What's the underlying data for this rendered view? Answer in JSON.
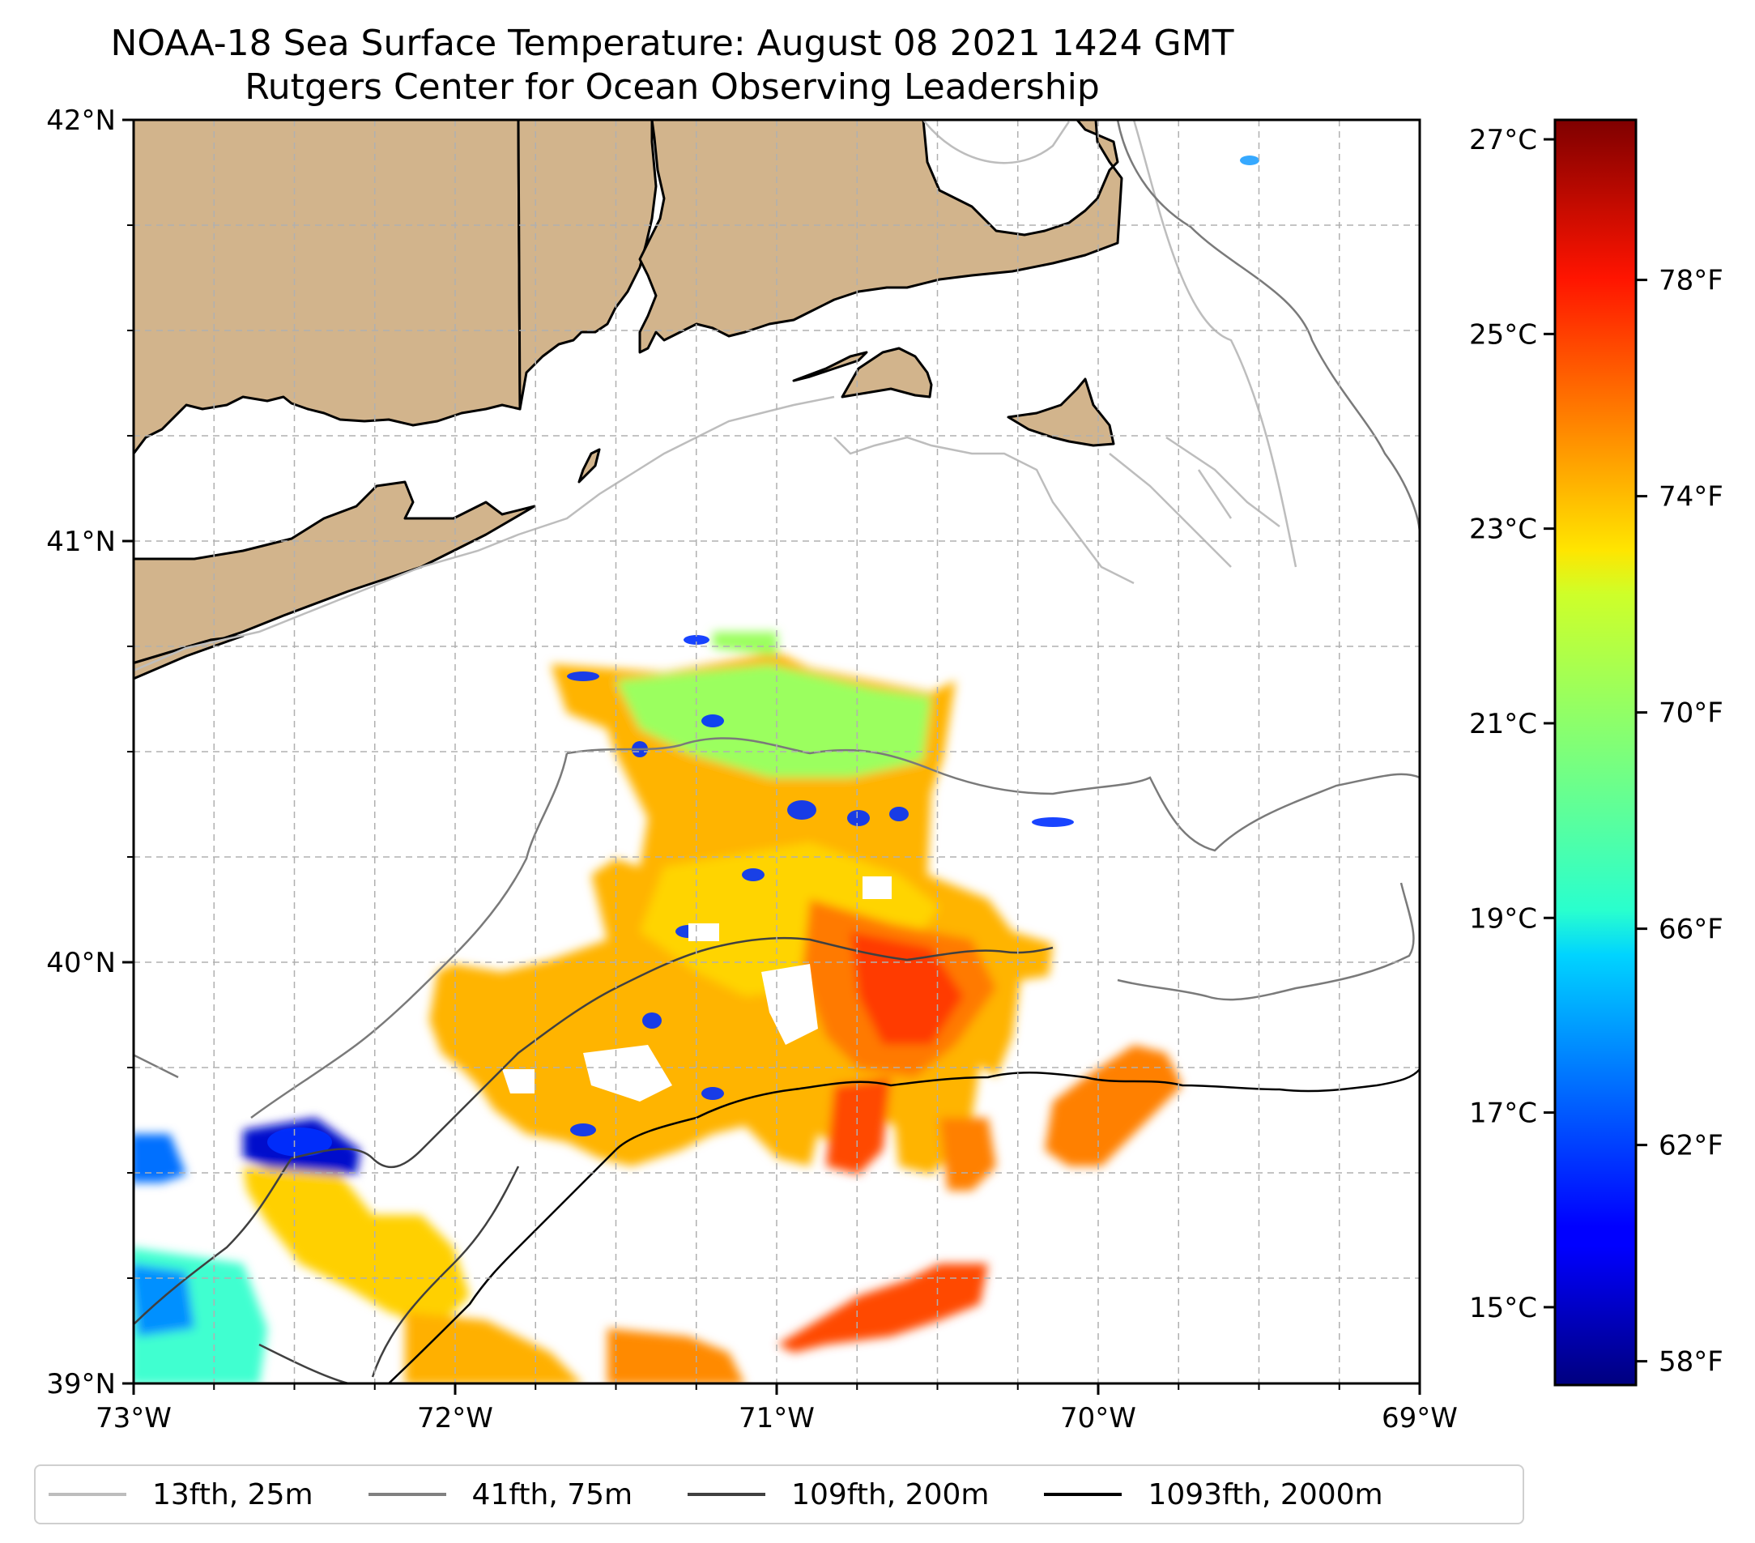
{
  "title": "NOAA-18 Sea Surface Temperature: August 08 2021 1424 GMT",
  "subtitle": "Rutgers Center for Ocean Observing Leadership",
  "map": {
    "lon_range": [
      -73,
      -69
    ],
    "lat_range": [
      39,
      42
    ],
    "lon_ticks": [
      {
        "value": -73,
        "label": "73°W"
      },
      {
        "value": -72,
        "label": "72°W"
      },
      {
        "value": -71,
        "label": "71°W"
      },
      {
        "value": -70,
        "label": "70°W"
      },
      {
        "value": -69,
        "label": "69°W"
      }
    ],
    "lat_ticks": [
      {
        "value": 42,
        "label": "42°N"
      },
      {
        "value": 41,
        "label": "41°N"
      },
      {
        "value": 40,
        "label": "40°N"
      },
      {
        "value": 39,
        "label": "39°N"
      }
    ],
    "grid": true,
    "land_color": "#d2b48c",
    "ocean_color": "#ffffff"
  },
  "colorbar": {
    "colormap": "jet",
    "range_c": [
      14.2,
      27.2
    ],
    "celsius_ticks": [
      {
        "value": 27,
        "label": "27°C"
      },
      {
        "value": 25,
        "label": "25°C"
      },
      {
        "value": 23,
        "label": "23°C"
      },
      {
        "value": 21,
        "label": "21°C"
      },
      {
        "value": 19,
        "label": "19°C"
      },
      {
        "value": 17,
        "label": "17°C"
      },
      {
        "value": 15,
        "label": "15°C"
      }
    ],
    "fahrenheit_ticks": [
      {
        "value": 78,
        "label": "78°F"
      },
      {
        "value": 74,
        "label": "74°F"
      },
      {
        "value": 70,
        "label": "70°F"
      },
      {
        "value": 66,
        "label": "66°F"
      },
      {
        "value": 62,
        "label": "62°F"
      },
      {
        "value": 58,
        "label": "58°F"
      }
    ]
  },
  "legend": [
    {
      "label": "13fth, 25m",
      "color": "#bdbdbd"
    },
    {
      "label": "41fth, 75m",
      "color": "#808080"
    },
    {
      "label": "109fth, 200m",
      "color": "#404040"
    },
    {
      "label": "1093fth, 2000m",
      "color": "#000000"
    }
  ]
}
